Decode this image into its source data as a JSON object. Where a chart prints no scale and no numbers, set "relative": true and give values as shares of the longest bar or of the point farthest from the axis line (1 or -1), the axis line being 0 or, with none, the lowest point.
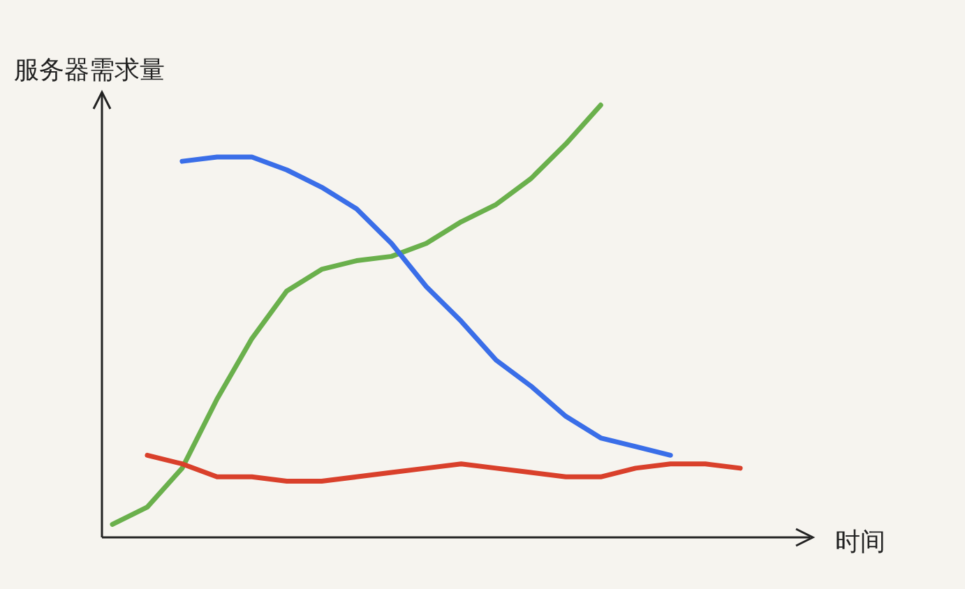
{
  "chart_data": {
    "type": "line",
    "relative": true,
    "xlabel": "时间",
    "ylabel": "服务器需求量",
    "categories": [
      null,
      null,
      null,
      null,
      null,
      null,
      null,
      null,
      null,
      null,
      null,
      null,
      null,
      null,
      null,
      null,
      null,
      null,
      null
    ],
    "marker": "none",
    "series": [
      {
        "color": "#6ab04c",
        "values": [
          0.03,
          0.07,
          0.16,
          0.32,
          0.46,
          0.57,
          0.62,
          0.64,
          0.65,
          0.68,
          0.73,
          0.77,
          0.83,
          0.91,
          1,
          null,
          null,
          null,
          null
        ]
      },
      {
        "color": "#3a6ee8",
        "values": [
          null,
          null,
          0.87,
          0.88,
          0.88,
          0.85,
          0.81,
          0.76,
          0.68,
          0.58,
          0.5,
          0.41,
          0.35,
          0.28,
          0.23,
          0.21,
          0.19,
          null,
          null
        ]
      },
      {
        "color": "#d9402b",
        "values": [
          null,
          0.19,
          0.17,
          0.14,
          0.14,
          0.13,
          0.13,
          0.14,
          0.15,
          0.16,
          0.17,
          0.16,
          0.15,
          0.14,
          0.14,
          0.16,
          0.17,
          0.17,
          0.16
        ]
      }
    ]
  }
}
